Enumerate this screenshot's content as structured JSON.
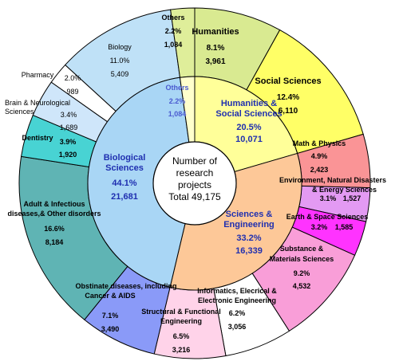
{
  "chart_data": {
    "type": "pie",
    "style": "double-donut",
    "center_text": [
      "Number of",
      "research",
      "projects",
      "Total 49,175"
    ],
    "total": 49175,
    "colors": {
      "biological_inner": "#a9d6f5",
      "humanities_inner": "#ffff99",
      "sciences_inner": "#fdc898",
      "others_inner": "#ffffcc",
      "outline": "#000000",
      "inner_text": "#1f2fb0"
    },
    "inner_ring": [
      {
        "name": [
          "Humanities &",
          "Social Sciences"
        ],
        "percent": "20.5%",
        "value": 10071,
        "value_label": "10,071",
        "color": "#ffff99"
      },
      {
        "name": [
          "Sciences &",
          "Engineering"
        ],
        "percent": "33.2%",
        "value": 16339,
        "value_label": "16,339",
        "color": "#fdc898"
      },
      {
        "name": [
          "Biological",
          "Sciences"
        ],
        "percent": "44.1%",
        "value": 21681,
        "value_label": "21,681",
        "color": "#a9d6f5"
      },
      {
        "name": [
          "Others"
        ],
        "percent": "2.2%",
        "value": 1084,
        "value_label": "1,084",
        "color": "#ffffcc"
      }
    ],
    "outer_ring": [
      {
        "name": [
          "Humanities"
        ],
        "percent": "8.1%",
        "value": 3961,
        "value_label": "3,961",
        "color": "#d9ea91"
      },
      {
        "name": [
          "Social Sciences"
        ],
        "percent": "12.4%",
        "value": 6110,
        "value_label": "6,110",
        "color": "#ffff66"
      },
      {
        "name": [
          "Math & Physics"
        ],
        "percent": "4.9%",
        "value": 2423,
        "value_label": "2,423",
        "color": "#fa9496"
      },
      {
        "name": [
          "Environment, Natural Disasters",
          "& Energy Sciences"
        ],
        "percent": "3.1%",
        "value": 1527,
        "value_label": "1,527",
        "color": "#e39af3"
      },
      {
        "name": [
          "Earth & Space Sciences"
        ],
        "percent": "3.2%",
        "value": 1585,
        "value_label": "1,585",
        "color": "#ff33ff"
      },
      {
        "name": [
          "Substance &",
          "Materials Sciences"
        ],
        "percent": "9.2%",
        "value": 4532,
        "value_label": "4,532",
        "color": "#f99ed8"
      },
      {
        "name": [
          "Informatics, Elecrical &",
          "Electronic Engineering"
        ],
        "percent": "6.2%",
        "value": 3056,
        "value_label": "3,056",
        "color": "#ffffff"
      },
      {
        "name": [
          "Structural & Functional",
          "Engineering"
        ],
        "percent": "6.5%",
        "value": 3216,
        "value_label": "3,216",
        "color": "#ffd3e9"
      },
      {
        "name": [
          "Obstinate diseases, including",
          "Cancer & AIDS"
        ],
        "percent": "7.1%",
        "value": 3490,
        "value_label": "3,490",
        "color": "#8a9af8"
      },
      {
        "name": [
          "Adult & Infectious",
          "diseases,& Other disorders"
        ],
        "percent": "16.6%",
        "value": 8184,
        "value_label": "8,184",
        "color": "#5fb4b4"
      },
      {
        "name": [
          "Dentistry"
        ],
        "percent": "3.9%",
        "value": 1920,
        "value_label": "1,920",
        "color": "#48d3d3"
      },
      {
        "name": [
          "Brain & Neurological",
          "Sciences"
        ],
        "percent": "3.4%",
        "value": 1689,
        "value_label": "1,689",
        "color": "#cfe6fa"
      },
      {
        "name": [
          "Pharmacy"
        ],
        "percent": "2.0%",
        "value": 989,
        "value_label": "989",
        "color": "#ffffff"
      },
      {
        "name": [
          "Biology"
        ],
        "percent": "11.0%",
        "value": 5409,
        "value_label": "5,409",
        "color": "#bfe1f7"
      },
      {
        "name": [
          "Others"
        ],
        "percent": "2.2%",
        "value": 1084,
        "value_label": "1,084",
        "color": "#dfee9a"
      }
    ]
  }
}
